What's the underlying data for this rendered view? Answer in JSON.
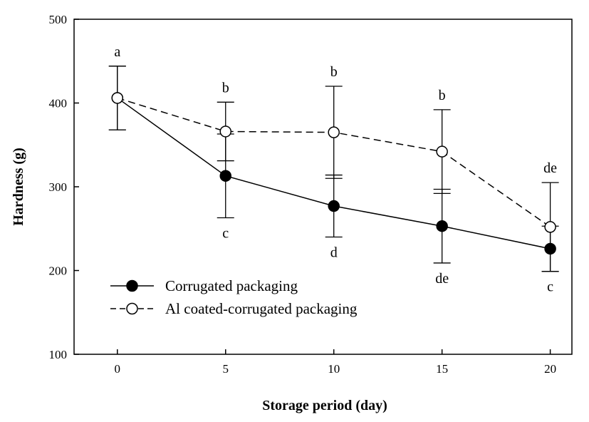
{
  "chart_data": {
    "type": "line",
    "xlabel": "Storage period (day)",
    "ylabel": "Hardness (g)",
    "xlim": [
      -2,
      21
    ],
    "ylim": [
      100,
      500
    ],
    "xticks": [
      "0",
      "5",
      "10",
      "15",
      "20"
    ],
    "yticks": [
      "100",
      "200",
      "300",
      "400",
      "500"
    ],
    "x": [
      0,
      5,
      10,
      15,
      20
    ],
    "legend_position": "bottom-left",
    "series": [
      {
        "name": "Corrugated packaging",
        "marker": "filled-circle",
        "line_style": "solid",
        "values": [
          406,
          313,
          277,
          253,
          226
        ],
        "error": [
          38,
          50,
          37,
          44,
          27
        ],
        "labels": [
          "",
          "c",
          "d",
          "de",
          "c"
        ]
      },
      {
        "name": "Al coated-corrugated packaging",
        "marker": "open-circle",
        "line_style": "dashed",
        "values": [
          406,
          366,
          365,
          342,
          252
        ],
        "error": [
          38,
          35,
          55,
          50,
          53
        ],
        "labels": [
          "a",
          "b",
          "b",
          "b",
          "de"
        ]
      }
    ]
  }
}
